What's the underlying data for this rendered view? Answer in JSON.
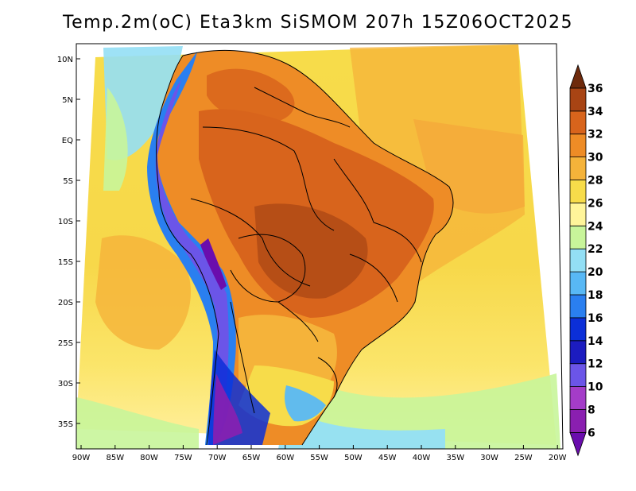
{
  "title": "Temp.2m(oC) Eta3km SiSMOM 207h 15Z06OCT2025",
  "map": {
    "variable": "2 m temperature",
    "units": "oC",
    "lon_range": [
      -91,
      -20
    ],
    "lat_range": [
      -38,
      12
    ],
    "lat_ticks": [
      {
        "value": 10,
        "label": "10N"
      },
      {
        "value": 5,
        "label": "5N"
      },
      {
        "value": 0,
        "label": "EQ"
      },
      {
        "value": -5,
        "label": "5S"
      },
      {
        "value": -10,
        "label": "10S"
      },
      {
        "value": -15,
        "label": "15S"
      },
      {
        "value": -20,
        "label": "20S"
      },
      {
        "value": -25,
        "label": "25S"
      },
      {
        "value": -30,
        "label": "30S"
      },
      {
        "value": -35,
        "label": "35S"
      }
    ],
    "lon_ticks": [
      {
        "value": -90,
        "label": "90W"
      },
      {
        "value": -85,
        "label": "85W"
      },
      {
        "value": -80,
        "label": "80W"
      },
      {
        "value": -75,
        "label": "75W"
      },
      {
        "value": -70,
        "label": "70W"
      },
      {
        "value": -65,
        "label": "65W"
      },
      {
        "value": -60,
        "label": "60W"
      },
      {
        "value": -55,
        "label": "55W"
      },
      {
        "value": -50,
        "label": "50W"
      },
      {
        "value": -45,
        "label": "45W"
      },
      {
        "value": -40,
        "label": "40W"
      },
      {
        "value": -35,
        "label": "35W"
      },
      {
        "value": -30,
        "label": "30W"
      },
      {
        "value": -25,
        "label": "25W"
      },
      {
        "value": -20,
        "label": "20W"
      }
    ]
  },
  "colorbar": {
    "labels": [
      "6",
      "8",
      "10",
      "12",
      "14",
      "16",
      "18",
      "20",
      "22",
      "24",
      "26",
      "28",
      "30",
      "32",
      "34",
      "36"
    ],
    "bins": [
      {
        "range": "<6",
        "color": "#6a0dad"
      },
      {
        "range": "6-8",
        "color": "#8a1fb0"
      },
      {
        "range": "8-10",
        "color": "#a43cc8"
      },
      {
        "range": "10-12",
        "color": "#6b55e8"
      },
      {
        "range": "12-14",
        "color": "#1c1cc0"
      },
      {
        "range": "14-16",
        "color": "#0b2fd8"
      },
      {
        "range": "16-18",
        "color": "#2a7ff0"
      },
      {
        "range": "18-20",
        "color": "#58b8f5"
      },
      {
        "range": "20-22",
        "color": "#93dff5"
      },
      {
        "range": "22-24",
        "color": "#c8f59a"
      },
      {
        "range": "24-26",
        "color": "#fff59a"
      },
      {
        "range": "26-28",
        "color": "#f7dc4a"
      },
      {
        "range": "28-30",
        "color": "#f5b33a"
      },
      {
        "range": "30-32",
        "color": "#ee8c26"
      },
      {
        "range": "32-34",
        "color": "#d8641c"
      },
      {
        "range": "34-36",
        "color": "#a84414"
      },
      {
        "range": ">36",
        "color": "#6e2a0c"
      }
    ]
  }
}
